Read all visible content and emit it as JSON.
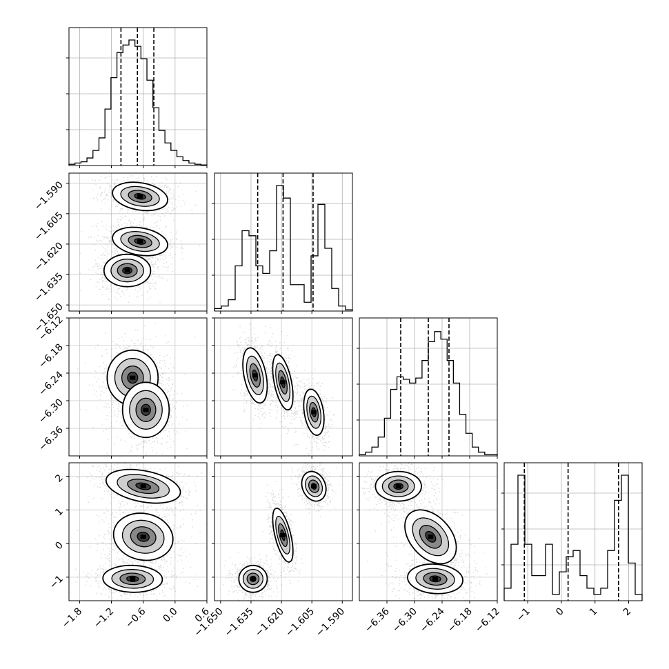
{
  "chart_data": {
    "type": "corner",
    "title": "",
    "grid": true,
    "parameters": [
      {
        "range": [
          -2.0,
          0.6
        ],
        "ticks": [
          -1.8,
          -1.2,
          -0.6,
          0.0,
          0.6
        ],
        "tick_labels": [
          "−1.8",
          "−1.2",
          "−0.6",
          "0.0",
          "0.6"
        ]
      },
      {
        "range": [
          -1.653,
          -1.585
        ],
        "ticks": [
          -1.65,
          -1.635,
          -1.62,
          -1.605,
          -1.59
        ],
        "tick_labels": [
          "−1.650",
          "−1.635",
          "−1.620",
          "−1.605",
          "−1.590"
        ]
      },
      {
        "range": [
          -6.42,
          -6.12
        ],
        "ticks": [
          -6.36,
          -6.3,
          -6.24,
          -6.18,
          -6.12
        ],
        "tick_labels": [
          "−6.36",
          "−6.30",
          "−6.24",
          "−6.18",
          "−6.12"
        ]
      },
      {
        "range": [
          -1.7,
          2.4
        ],
        "ticks": [
          -1,
          0,
          1,
          2
        ],
        "tick_labels": [
          "−1",
          "0",
          "1",
          "2"
        ]
      }
    ],
    "quantiles": [
      [
        -1.02,
        -0.71,
        -0.4
      ],
      [
        -1.6317,
        -1.6192,
        -1.6044
      ],
      [
        -6.33,
        -6.27,
        -6.225
      ],
      [
        -1.1,
        0.2,
        1.7
      ]
    ],
    "histograms": [
      {
        "counts": [
          0.01,
          0.02,
          0.03,
          0.06,
          0.12,
          0.22,
          0.45,
          0.7,
          0.9,
          0.96,
          1.0,
          0.95,
          0.85,
          0.68,
          0.46,
          0.28,
          0.18,
          0.12,
          0.07,
          0.04,
          0.02,
          0.01,
          0.005
        ]
      },
      {
        "counts": [
          0.02,
          0.04,
          0.09,
          0.36,
          0.64,
          0.6,
          0.36,
          0.3,
          0.48,
          1.0,
          0.9,
          0.21,
          0.21,
          0.07,
          0.44,
          0.85,
          0.5,
          0.18,
          0.04,
          0.01
        ]
      },
      {
        "counts": [
          0.01,
          0.03,
          0.07,
          0.15,
          0.3,
          0.53,
          0.63,
          0.61,
          0.58,
          0.62,
          0.76,
          0.91,
          0.99,
          0.93,
          0.76,
          0.58,
          0.33,
          0.18,
          0.07,
          0.03,
          0.01,
          0.01
        ]
      },
      {
        "counts": [
          0.1,
          0.45,
          1.0,
          0.45,
          0.2,
          0.2,
          0.45,
          0.05,
          0.23,
          0.35,
          0.4,
          0.2,
          0.1,
          0.05,
          0.1,
          0.4,
          0.8,
          1.0,
          0.3,
          0.05
        ]
      }
    ],
    "pair_modes": {
      "1_0": [
        {
          "mx": -0.66,
          "my": -1.5965,
          "sx": 0.26,
          "sy": 0.0035,
          "r": -0.25,
          "w": 1
        },
        {
          "mx": -0.66,
          "my": -1.6187,
          "sx": 0.26,
          "sy": 0.0035,
          "r": -0.25,
          "w": 1
        },
        {
          "mx": -0.9,
          "my": -1.633,
          "sx": 0.22,
          "sy": 0.004,
          "r": 0,
          "w": 1
        }
      ],
      "2_0": [
        {
          "mx": -0.8,
          "my": -6.25,
          "sx": 0.24,
          "sy": 0.03,
          "r": 0,
          "w": 1
        },
        {
          "mx": -0.55,
          "my": -6.32,
          "sx": 0.22,
          "sy": 0.03,
          "r": 0,
          "w": 0.9
        }
      ],
      "3_0": [
        {
          "mx": -0.6,
          "my": 1.7,
          "sx": 0.35,
          "sy": 0.25,
          "r": -0.35,
          "w": 1
        },
        {
          "mx": -0.6,
          "my": 0.2,
          "sx": 0.28,
          "sy": 0.35,
          "r": -0.1,
          "w": 1
        },
        {
          "mx": -0.8,
          "my": -1.05,
          "sx": 0.28,
          "sy": 0.2,
          "r": -0.05,
          "w": 1
        }
      ],
      "2_1": [
        {
          "mx": -1.633,
          "my": -6.245,
          "sx": 0.003,
          "sy": 0.03,
          "r": -0.4,
          "w": 1
        },
        {
          "mx": -1.6193,
          "my": -6.26,
          "sx": 0.0025,
          "sy": 0.03,
          "r": -0.5,
          "w": 1
        },
        {
          "mx": -1.604,
          "my": -6.325,
          "sx": 0.0025,
          "sy": 0.025,
          "r": -0.3,
          "w": 1
        }
      ],
      "3_1": [
        {
          "mx": -1.604,
          "my": 1.7,
          "sx": 0.003,
          "sy": 0.22,
          "r": -0.2,
          "w": 1
        },
        {
          "mx": -1.6193,
          "my": 0.25,
          "sx": 0.0025,
          "sy": 0.4,
          "r": -0.6,
          "w": 1
        },
        {
          "mx": -1.634,
          "my": -1.05,
          "sx": 0.0035,
          "sy": 0.2,
          "r": 0,
          "w": 1
        }
      ],
      "3_2": [
        {
          "mx": -6.335,
          "my": 1.7,
          "sx": 0.025,
          "sy": 0.22,
          "r": 0,
          "w": 1
        },
        {
          "mx": -6.265,
          "my": 0.2,
          "sx": 0.028,
          "sy": 0.4,
          "r": -0.4,
          "w": 1
        },
        {
          "mx": -6.255,
          "my": -1.05,
          "sx": 0.03,
          "sy": 0.22,
          "r": -0.1,
          "w": 1
        }
      ]
    }
  }
}
